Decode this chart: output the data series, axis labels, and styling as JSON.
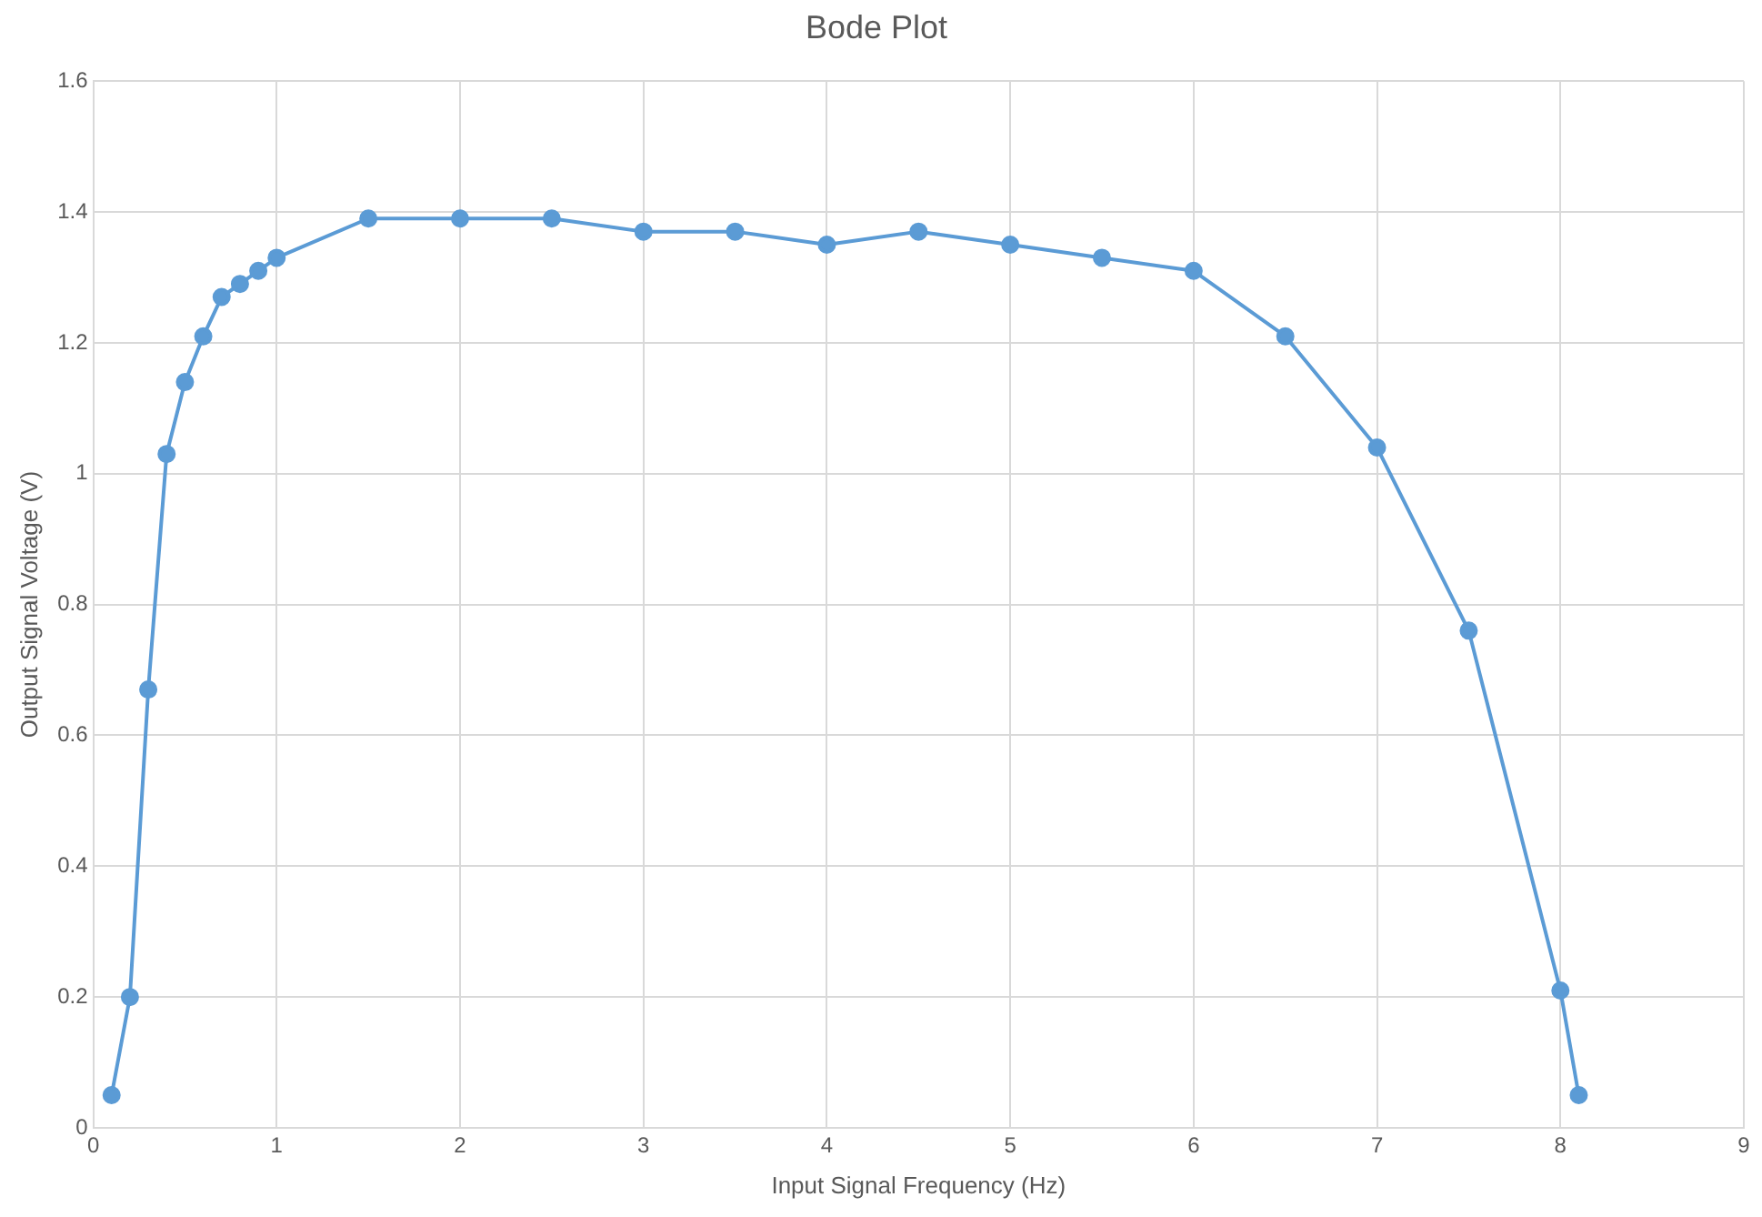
{
  "chart_data": {
    "type": "line",
    "title": "Bode Plot",
    "xlabel": "Input Signal Frequency (Hz)",
    "ylabel": "Output Signal Voltage (V)",
    "x": [
      0.1,
      0.2,
      0.3,
      0.4,
      0.5,
      0.6,
      0.7,
      0.8,
      0.9,
      1,
      1.5,
      2,
      2.5,
      3,
      3.5,
      4,
      4.5,
      5,
      5.5,
      6,
      6.5,
      7,
      7.5,
      8,
      8.1
    ],
    "series": [
      {
        "color": "#5b9bd5",
        "values": [
          0.05,
          0.2,
          0.67,
          1.03,
          1.14,
          1.21,
          1.27,
          1.29,
          1.31,
          1.33,
          1.39,
          1.39,
          1.39,
          1.37,
          1.37,
          1.35,
          1.37,
          1.35,
          1.33,
          1.31,
          1.21,
          1.04,
          0.76,
          0.21,
          0.05
        ]
      }
    ],
    "xlim": [
      0,
      9
    ],
    "xticks": [
      0,
      1,
      2,
      3,
      4,
      5,
      6,
      7,
      8,
      9
    ],
    "ylim": [
      0,
      1.6
    ],
    "yticks": [
      0,
      {
        "value": 0.2,
        "label": "0.2"
      },
      {
        "value": 0.4,
        "label": "0.4"
      },
      {
        "value": 0.6,
        "label": "0.6"
      },
      {
        "value": 0.8,
        "label": "0.8"
      },
      1,
      {
        "value": 1.2,
        "label": "1.2"
      },
      {
        "value": 1.4,
        "label": "1.4"
      },
      {
        "value": 1.6,
        "label": "1.6"
      }
    ],
    "grid": true,
    "legend": false,
    "marker": "circle",
    "line_style": "solid"
  }
}
